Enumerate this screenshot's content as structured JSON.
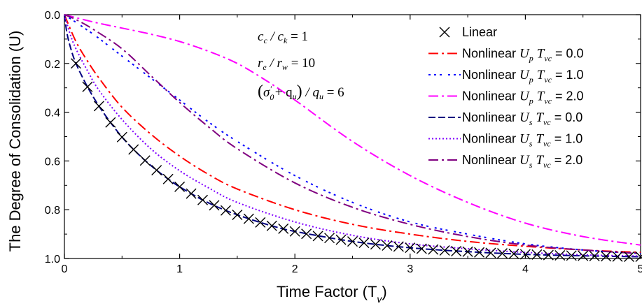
{
  "chart_data": {
    "type": "line",
    "title": "",
    "xlabel": "Time Factor (T",
    "xlabel_sub": "v",
    "xlabel_close": ")",
    "ylabel": "The Degree of Consolidation (U)",
    "xlim": [
      0,
      5
    ],
    "ylim": [
      0.0,
      1.0
    ],
    "y_inverted": true,
    "xticks": [
      "0",
      "1",
      "2",
      "3",
      "4",
      "5"
    ],
    "yticks": [
      "0.0",
      "0.2",
      "0.4",
      "0.6",
      "0.8",
      "1.0"
    ],
    "legend_position": "top-right",
    "annotations": [
      "c_c / c_k = 1",
      "r_e / r_w = 10",
      "(σ'_0 + q_u) / q_u = 6"
    ],
    "series": [
      {
        "name": "Linear",
        "legend": {
          "pre": "Linear",
          "sym": "",
          "sub": "",
          "mid": "",
          "tsub": "",
          "val": ""
        },
        "style": "markers",
        "marker": "x",
        "color": "#000000",
        "x": [
          0.1,
          0.2,
          0.3,
          0.4,
          0.5,
          0.6,
          0.7,
          0.8,
          0.9,
          1.0,
          1.1,
          1.2,
          1.3,
          1.4,
          1.5,
          1.6,
          1.7,
          1.8,
          1.9,
          2.0,
          2.1,
          2.2,
          2.3,
          2.4,
          2.5,
          2.6,
          2.7,
          2.8,
          2.9,
          3.0,
          3.1,
          3.2,
          3.3,
          3.4,
          3.5,
          3.6,
          3.7,
          3.8,
          3.9,
          4.0,
          4.1,
          4.2,
          4.3,
          4.4,
          4.5,
          4.6,
          4.7,
          4.8,
          4.9,
          5.0
        ],
        "y": [
          0.2,
          0.296,
          0.375,
          0.442,
          0.502,
          0.553,
          0.598,
          0.638,
          0.674,
          0.706,
          0.734,
          0.76,
          0.782,
          0.803,
          0.821,
          0.837,
          0.852,
          0.866,
          0.878,
          0.889,
          0.899,
          0.908,
          0.916,
          0.923,
          0.93,
          0.936,
          0.942,
          0.947,
          0.951,
          0.956,
          0.96,
          0.963,
          0.967,
          0.97,
          0.972,
          0.975,
          0.977,
          0.979,
          0.981,
          0.983,
          0.984,
          0.986,
          0.987,
          0.988,
          0.989,
          0.99,
          0.991,
          0.992,
          0.993,
          0.993
        ]
      },
      {
        "name": "Nonlinear U_p T_vc = 0.0",
        "legend": {
          "pre": "Nonlinear ",
          "sym": "U",
          "sub": "p",
          "mid": "T",
          "tsub": "vc",
          "val": " = 0.0"
        },
        "style": "dashdot",
        "color": "#ff0000",
        "x": [
          0,
          0.1,
          0.2,
          0.3,
          0.5,
          0.75,
          1.0,
          1.25,
          1.5,
          2.0,
          2.5,
          3.0,
          3.5,
          4.0,
          4.5,
          5.0
        ],
        "y": [
          0,
          0.11,
          0.19,
          0.26,
          0.38,
          0.49,
          0.58,
          0.655,
          0.715,
          0.8,
          0.86,
          0.9,
          0.93,
          0.95,
          0.965,
          0.975
        ]
      },
      {
        "name": "Nonlinear U_p T_vc = 1.0",
        "legend": {
          "pre": "Nonlinear ",
          "sym": "U",
          "sub": "p",
          "mid": "T",
          "tsub": "vc",
          "val": " = 1.0"
        },
        "style": "dashdotdot",
        "color": "#0000ff",
        "x": [
          0,
          0.25,
          0.5,
          0.75,
          1.0,
          1.25,
          1.5,
          2.0,
          2.5,
          3.0,
          3.5,
          4.0,
          4.5,
          5.0
        ],
        "y": [
          0,
          0.08,
          0.17,
          0.26,
          0.35,
          0.44,
          0.52,
          0.66,
          0.77,
          0.85,
          0.9,
          0.94,
          0.965,
          0.98
        ]
      },
      {
        "name": "Nonlinear U_p T_vc = 2.0",
        "legend": {
          "pre": "Nonlinear ",
          "sym": "U",
          "sub": "p",
          "mid": "T",
          "tsub": "vc",
          "val": " = 2.0"
        },
        "style": "dashdot",
        "color": "#ff00ff",
        "x": [
          0,
          0.25,
          0.5,
          0.75,
          1.0,
          1.25,
          1.5,
          1.75,
          2.0,
          2.5,
          3.0,
          3.5,
          4.0,
          4.5,
          5.0
        ],
        "y": [
          0,
          0.03,
          0.055,
          0.08,
          0.11,
          0.15,
          0.2,
          0.27,
          0.35,
          0.52,
          0.66,
          0.77,
          0.855,
          0.91,
          0.945
        ]
      },
      {
        "name": "Nonlinear U_s T_vc = 0.0",
        "legend": {
          "pre": "Nonlinear ",
          "sym": "U",
          "sub": "s",
          "mid": "T",
          "tsub": "vc",
          "val": " = 0.0"
        },
        "style": "dash",
        "color": "#000080",
        "x": [
          0,
          0.02,
          0.05,
          0.1,
          0.2,
          0.3,
          0.4,
          0.5,
          0.6,
          0.7,
          0.8,
          0.9,
          1.0,
          1.2,
          1.4,
          1.6,
          1.8,
          2.0,
          2.5,
          3.0,
          3.5,
          4.0,
          4.5,
          5.0
        ],
        "y": [
          0,
          0.07,
          0.13,
          0.2,
          0.296,
          0.375,
          0.442,
          0.502,
          0.553,
          0.598,
          0.638,
          0.674,
          0.706,
          0.76,
          0.803,
          0.837,
          0.866,
          0.889,
          0.93,
          0.956,
          0.972,
          0.983,
          0.989,
          0.993
        ]
      },
      {
        "name": "Nonlinear U_s T_vc = 1.0",
        "legend": {
          "pre": "Nonlinear ",
          "sym": "U",
          "sub": "s",
          "mid": "T",
          "tsub": "vc",
          "val": " = 1.0"
        },
        "style": "dot",
        "color": "#8000ff",
        "x": [
          0,
          0.05,
          0.1,
          0.2,
          0.3,
          0.5,
          0.75,
          1.0,
          1.25,
          1.5,
          2.0,
          2.5,
          3.0,
          3.5,
          4.0,
          4.5,
          5.0
        ],
        "y": [
          0,
          0.08,
          0.14,
          0.23,
          0.31,
          0.43,
          0.55,
          0.64,
          0.71,
          0.77,
          0.85,
          0.905,
          0.94,
          0.96,
          0.975,
          0.985,
          0.99
        ]
      },
      {
        "name": "Nonlinear U_s T_vc = 2.0",
        "legend": {
          "pre": "Nonlinear ",
          "sym": "U",
          "sub": "s",
          "mid": "T",
          "tsub": "vc",
          "val": " = 2.0"
        },
        "style": "dashdot",
        "color": "#800080",
        "x": [
          0,
          0.1,
          0.25,
          0.5,
          0.75,
          1.0,
          1.25,
          1.5,
          2.0,
          2.5,
          3.0,
          3.5,
          4.0,
          4.5,
          5.0
        ],
        "y": [
          0,
          0.02,
          0.06,
          0.14,
          0.25,
          0.36,
          0.46,
          0.55,
          0.69,
          0.79,
          0.86,
          0.91,
          0.945,
          0.965,
          0.98
        ]
      }
    ]
  }
}
